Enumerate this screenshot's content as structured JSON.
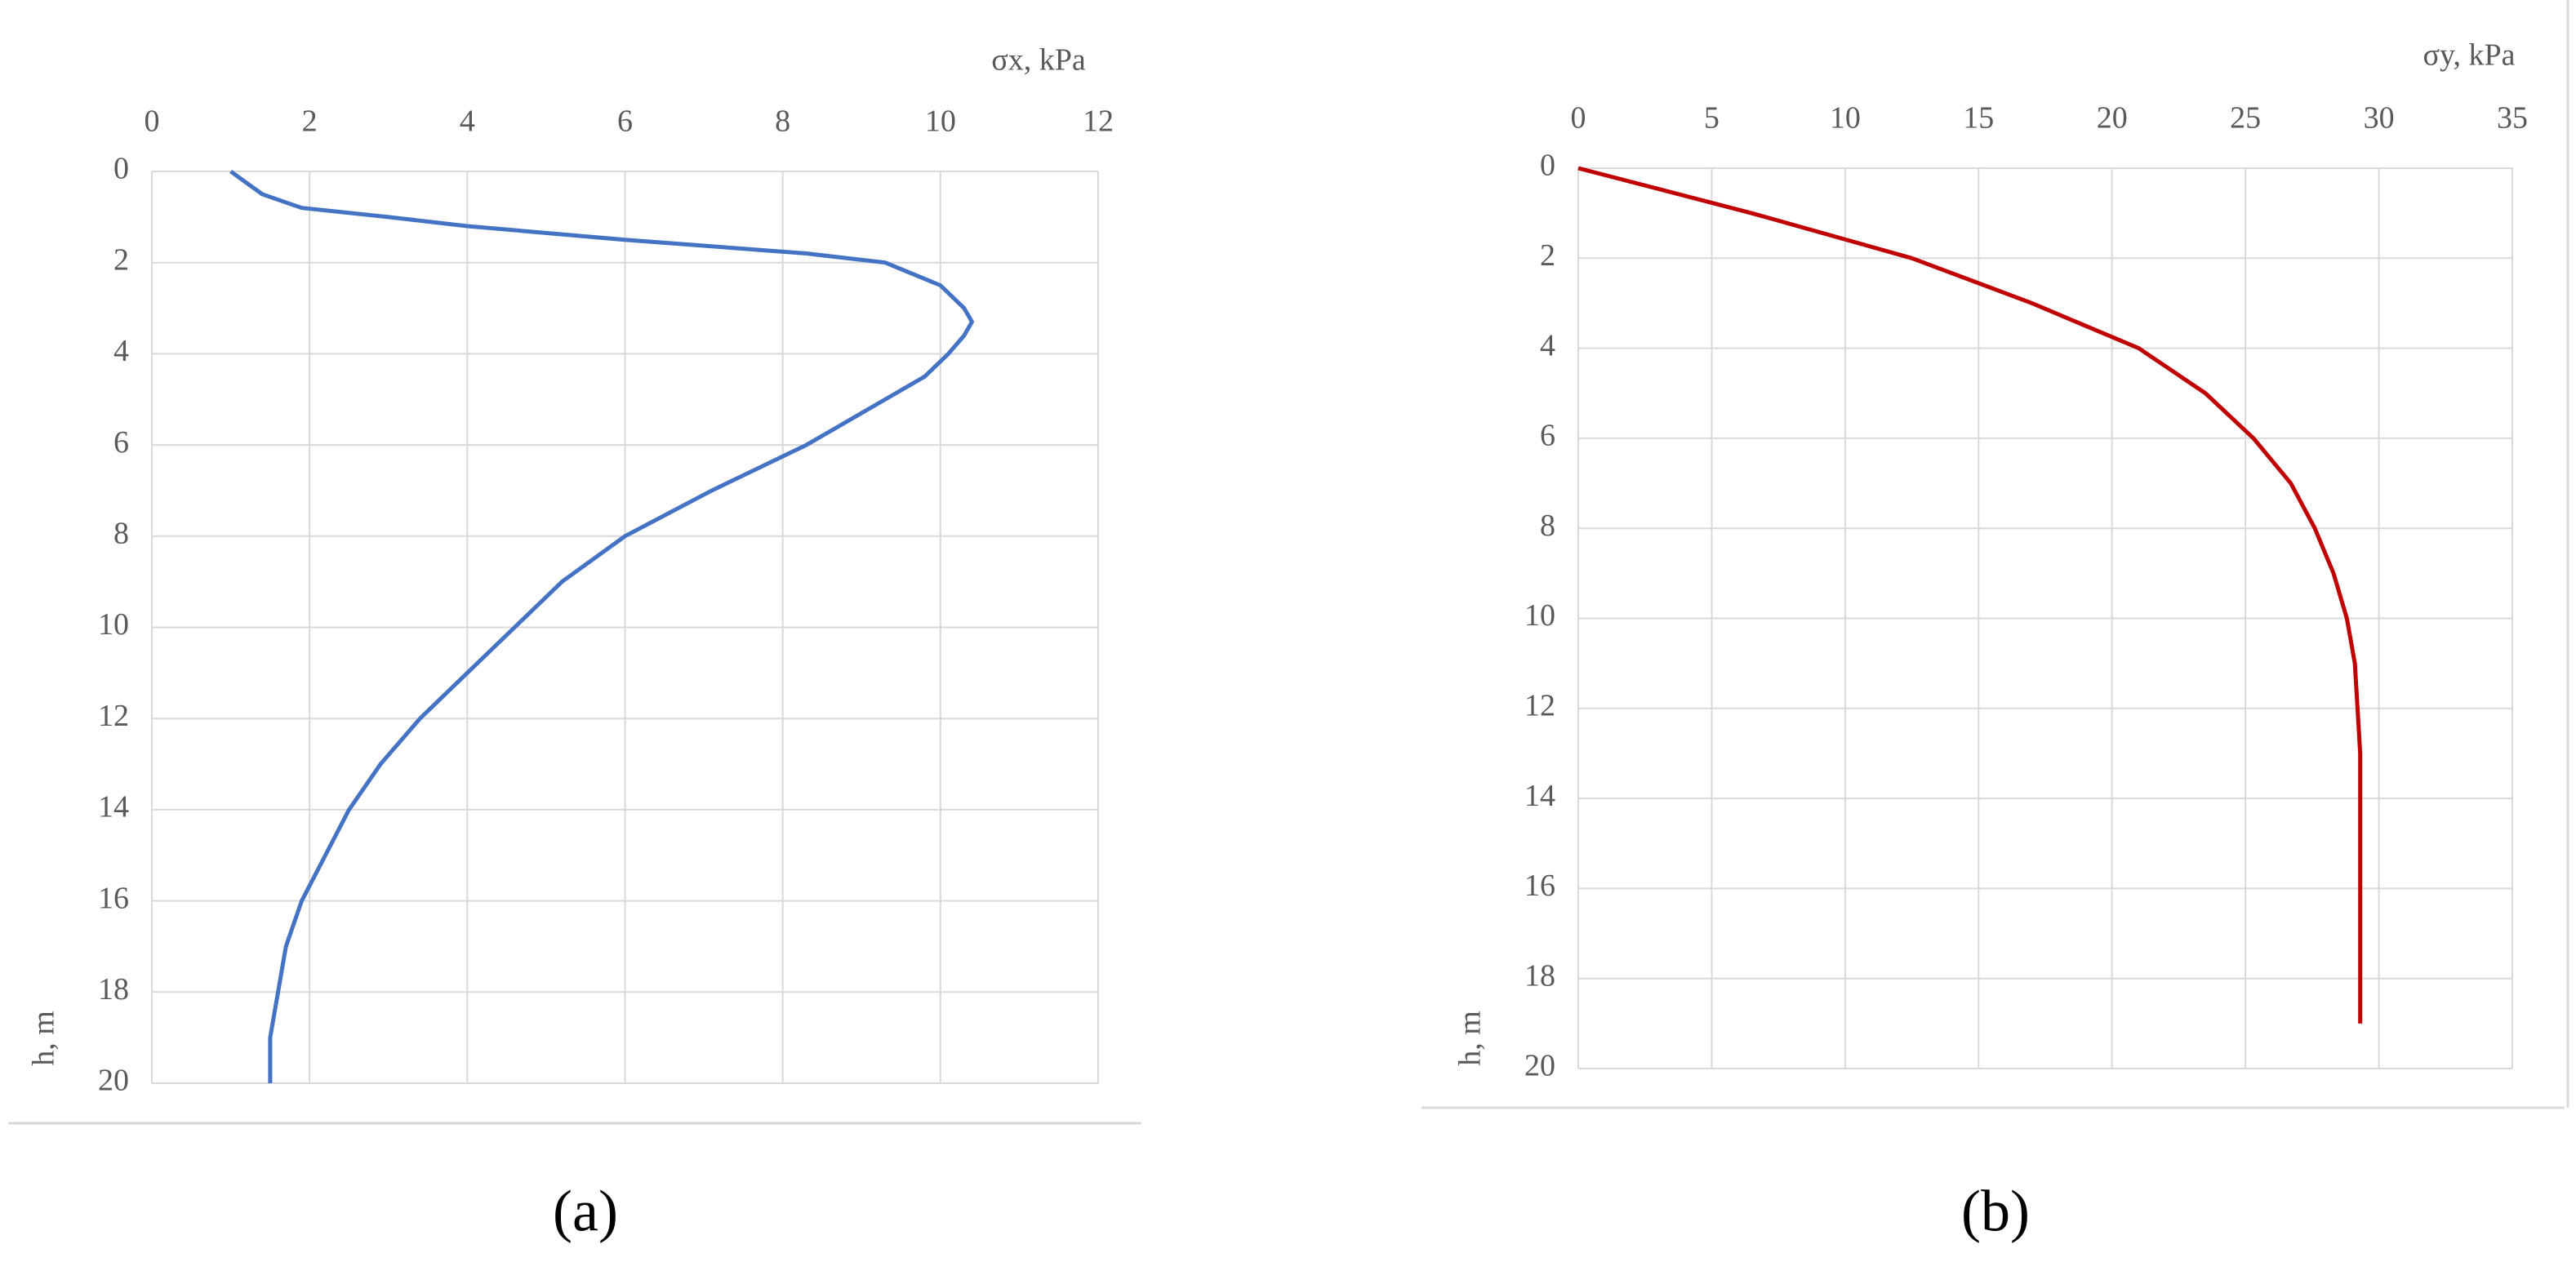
{
  "chart_data": [
    {
      "type": "line",
      "x_label": "σx, kPa",
      "y_label": "h, m",
      "caption": "(a)",
      "xlim": [
        0,
        12
      ],
      "xticks": [
        0,
        2,
        4,
        6,
        8,
        10,
        12
      ],
      "ylim": [
        0,
        20
      ],
      "yticks": [
        0,
        2,
        4,
        6,
        8,
        10,
        12,
        14,
        16,
        18,
        20
      ],
      "y_inverted": true,
      "x_axis_top": true,
      "grid": true,
      "series": [
        {
          "color": "#4472c4",
          "x": [
            1.0,
            1.4,
            1.9,
            3.0,
            4.0,
            6.0,
            8.3,
            9.3,
            10.0,
            10.3,
            10.4,
            10.3,
            10.1,
            9.8,
            9.3,
            8.3,
            7.1,
            6.0,
            5.2,
            4.6,
            4.0,
            3.4,
            2.9,
            2.5,
            2.2,
            1.9,
            1.7,
            1.6,
            1.5,
            1.5
          ],
          "y": [
            0,
            0.5,
            0.8,
            1.0,
            1.2,
            1.5,
            1.8,
            2.0,
            2.5,
            3.0,
            3.3,
            3.6,
            4.0,
            4.5,
            5,
            6,
            7,
            8,
            9,
            10,
            11,
            12,
            13,
            14,
            15,
            16,
            17,
            18,
            19,
            20
          ]
        }
      ]
    },
    {
      "type": "line",
      "x_label": "σy, kPa",
      "y_label": "h, m",
      "caption": "(b)",
      "xlim": [
        0,
        35
      ],
      "xticks": [
        0,
        5,
        10,
        15,
        20,
        25,
        30,
        35
      ],
      "ylim": [
        0,
        20
      ],
      "yticks": [
        0,
        2,
        4,
        6,
        8,
        10,
        12,
        14,
        16,
        18,
        20
      ],
      "y_inverted": true,
      "x_axis_top": true,
      "grid": true,
      "series": [
        {
          "color": "#c00000",
          "x": [
            0,
            6.5,
            12.5,
            17,
            21,
            23.5,
            25.3,
            26.7,
            27.6,
            28.3,
            28.8,
            29.1,
            29.2,
            29.3,
            29.3,
            29.3,
            29.3,
            29.3,
            29.3,
            29.3
          ],
          "y": [
            0,
            1,
            2,
            3,
            4,
            5,
            6,
            7,
            8,
            9,
            10,
            11,
            12,
            13,
            14,
            15,
            16,
            17,
            18,
            19
          ]
        }
      ]
    }
  ]
}
